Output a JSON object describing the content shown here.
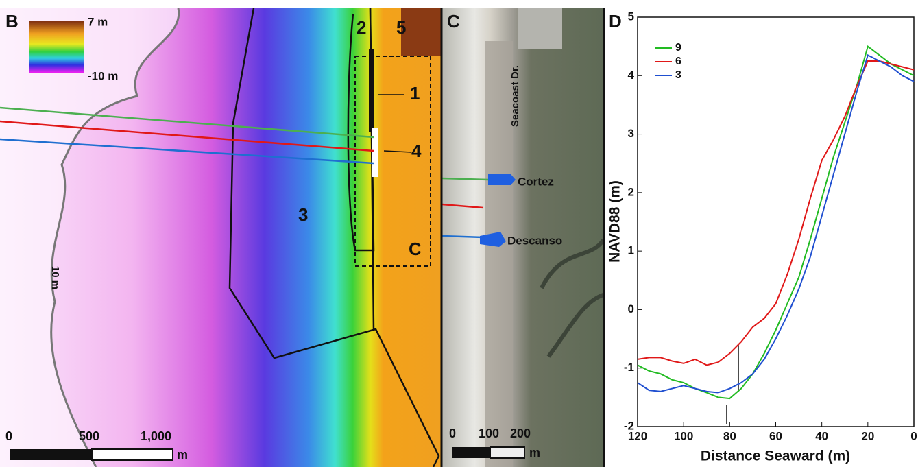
{
  "map_panel": {
    "label": "B",
    "legend_max": "7 m",
    "legend_min": "-10 m",
    "zone_labels": [
      "1",
      "2",
      "3",
      "4",
      "5",
      "C"
    ],
    "contour_label": "10 m",
    "scale_ticks": [
      "0",
      "500",
      "1,000"
    ],
    "scale_unit": "m"
  },
  "photo_panel": {
    "label": "C",
    "road": "Seacoast Dr.",
    "streets": [
      "Cortez",
      "Descanso"
    ],
    "scale_ticks": [
      "0",
      "100",
      "200"
    ],
    "scale_unit": "m"
  },
  "chart_data": {
    "type": "line",
    "panel_label": "D",
    "x_label": "Distance Seaward (m)",
    "y_label": "NAVD88 (m)",
    "x": [
      120,
      115,
      110,
      105,
      100,
      95,
      90,
      85,
      80,
      75,
      70,
      65,
      60,
      55,
      50,
      45,
      40,
      35,
      30,
      25,
      20,
      15,
      10,
      5,
      0
    ],
    "series": [
      {
        "name": "9",
        "color": "#22bb22",
        "values": [
          -0.95,
          -1.05,
          -1.1,
          -1.2,
          -1.25,
          -1.35,
          -1.42,
          -1.5,
          -1.52,
          -1.35,
          -1.1,
          -0.75,
          -0.35,
          0.1,
          0.55,
          1.2,
          1.9,
          2.6,
          3.2,
          3.8,
          4.5,
          4.35,
          4.2,
          4.1,
          4.0
        ]
      },
      {
        "name": "6",
        "color": "#e01818",
        "values": [
          -0.85,
          -0.82,
          -0.82,
          -0.88,
          -0.92,
          -0.85,
          -0.95,
          -0.9,
          -0.75,
          -0.55,
          -0.3,
          -0.15,
          0.1,
          0.6,
          1.2,
          1.9,
          2.55,
          2.9,
          3.3,
          3.8,
          4.25,
          4.25,
          4.2,
          4.15,
          4.1
        ]
      },
      {
        "name": "3",
        "color": "#1f4fd0",
        "values": [
          -1.25,
          -1.38,
          -1.4,
          -1.35,
          -1.3,
          -1.35,
          -1.4,
          -1.42,
          -1.35,
          -1.25,
          -1.1,
          -0.85,
          -0.5,
          -0.1,
          0.35,
          0.9,
          1.6,
          2.3,
          3.0,
          3.7,
          4.35,
          4.25,
          4.15,
          4.0,
          3.9
        ]
      }
    ],
    "xlim": [
      120,
      0
    ],
    "ylim": [
      -2,
      5
    ],
    "xticks": [
      120,
      100,
      80,
      60,
      40,
      20,
      0
    ],
    "yticks": [
      -2,
      -1,
      0,
      1,
      2,
      3,
      4,
      5
    ],
    "legend": "upper left"
  }
}
